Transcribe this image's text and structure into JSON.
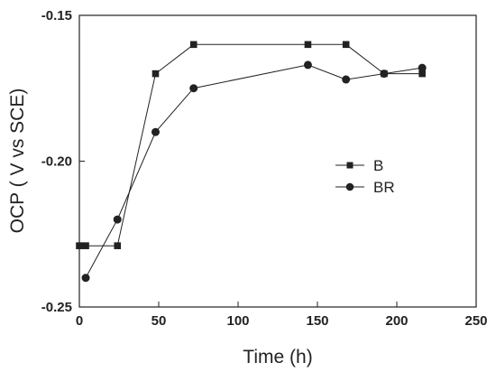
{
  "chart_data": {
    "type": "line",
    "title": "",
    "xlabel": "Time (h)",
    "ylabel": "OCP ( V vs SCE)",
    "xlim": [
      0,
      250
    ],
    "ylim": [
      -0.25,
      -0.15
    ],
    "xticks": [
      0,
      50,
      100,
      150,
      200,
      250
    ],
    "xtick_labels": [
      "0",
      "50",
      "100",
      "150",
      "200",
      "250"
    ],
    "yticks": [
      -0.25,
      -0.2,
      -0.15
    ],
    "ytick_labels": [
      "-0.25",
      "-0.20",
      "-0.15"
    ],
    "grid": false,
    "legend_position": "right-middle",
    "series": [
      {
        "name": "B",
        "marker": "square",
        "color": "#222222",
        "x": [
          0,
          4,
          24,
          48,
          72,
          144,
          168,
          192,
          216
        ],
        "y": [
          -0.229,
          -0.229,
          -0.229,
          -0.17,
          -0.16,
          -0.16,
          -0.16,
          -0.17,
          -0.17
        ]
      },
      {
        "name": "BR",
        "marker": "circle",
        "color": "#222222",
        "x": [
          4,
          24,
          48,
          72,
          144,
          168,
          192,
          216
        ],
        "y": [
          -0.24,
          -0.22,
          -0.19,
          -0.175,
          -0.167,
          -0.172,
          -0.17,
          -0.168
        ]
      }
    ]
  }
}
